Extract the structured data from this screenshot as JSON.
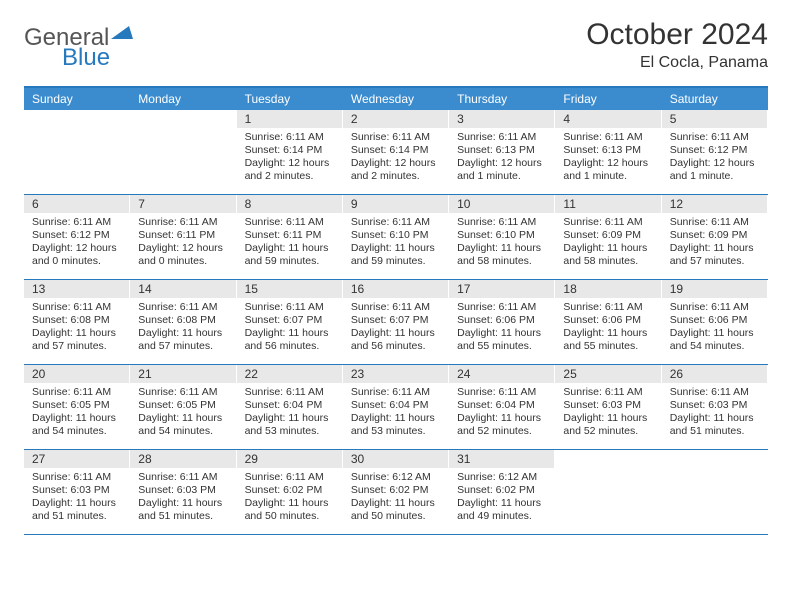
{
  "logo": {
    "general": "General",
    "blue": "Blue"
  },
  "title": "October 2024",
  "subtitle": "El Cocla, Panama",
  "colors": {
    "header_bar": "#3b8bcf",
    "border": "#2779bd",
    "daynum_bg": "#e8e8e8",
    "text": "#333333"
  },
  "dayHeaders": [
    "Sunday",
    "Monday",
    "Tuesday",
    "Wednesday",
    "Thursday",
    "Friday",
    "Saturday"
  ],
  "weeks": [
    [
      {
        "n": "",
        "sr": "",
        "ss": "",
        "dl": "",
        "empty": true
      },
      {
        "n": "",
        "sr": "",
        "ss": "",
        "dl": "",
        "empty": true
      },
      {
        "n": "1",
        "sr": "Sunrise: 6:11 AM",
        "ss": "Sunset: 6:14 PM",
        "dl": "Daylight: 12 hours and 2 minutes."
      },
      {
        "n": "2",
        "sr": "Sunrise: 6:11 AM",
        "ss": "Sunset: 6:14 PM",
        "dl": "Daylight: 12 hours and 2 minutes."
      },
      {
        "n": "3",
        "sr": "Sunrise: 6:11 AM",
        "ss": "Sunset: 6:13 PM",
        "dl": "Daylight: 12 hours and 1 minute."
      },
      {
        "n": "4",
        "sr": "Sunrise: 6:11 AM",
        "ss": "Sunset: 6:13 PM",
        "dl": "Daylight: 12 hours and 1 minute."
      },
      {
        "n": "5",
        "sr": "Sunrise: 6:11 AM",
        "ss": "Sunset: 6:12 PM",
        "dl": "Daylight: 12 hours and 1 minute."
      }
    ],
    [
      {
        "n": "6",
        "sr": "Sunrise: 6:11 AM",
        "ss": "Sunset: 6:12 PM",
        "dl": "Daylight: 12 hours and 0 minutes."
      },
      {
        "n": "7",
        "sr": "Sunrise: 6:11 AM",
        "ss": "Sunset: 6:11 PM",
        "dl": "Daylight: 12 hours and 0 minutes."
      },
      {
        "n": "8",
        "sr": "Sunrise: 6:11 AM",
        "ss": "Sunset: 6:11 PM",
        "dl": "Daylight: 11 hours and 59 minutes."
      },
      {
        "n": "9",
        "sr": "Sunrise: 6:11 AM",
        "ss": "Sunset: 6:10 PM",
        "dl": "Daylight: 11 hours and 59 minutes."
      },
      {
        "n": "10",
        "sr": "Sunrise: 6:11 AM",
        "ss": "Sunset: 6:10 PM",
        "dl": "Daylight: 11 hours and 58 minutes."
      },
      {
        "n": "11",
        "sr": "Sunrise: 6:11 AM",
        "ss": "Sunset: 6:09 PM",
        "dl": "Daylight: 11 hours and 58 minutes."
      },
      {
        "n": "12",
        "sr": "Sunrise: 6:11 AM",
        "ss": "Sunset: 6:09 PM",
        "dl": "Daylight: 11 hours and 57 minutes."
      }
    ],
    [
      {
        "n": "13",
        "sr": "Sunrise: 6:11 AM",
        "ss": "Sunset: 6:08 PM",
        "dl": "Daylight: 11 hours and 57 minutes."
      },
      {
        "n": "14",
        "sr": "Sunrise: 6:11 AM",
        "ss": "Sunset: 6:08 PM",
        "dl": "Daylight: 11 hours and 57 minutes."
      },
      {
        "n": "15",
        "sr": "Sunrise: 6:11 AM",
        "ss": "Sunset: 6:07 PM",
        "dl": "Daylight: 11 hours and 56 minutes."
      },
      {
        "n": "16",
        "sr": "Sunrise: 6:11 AM",
        "ss": "Sunset: 6:07 PM",
        "dl": "Daylight: 11 hours and 56 minutes."
      },
      {
        "n": "17",
        "sr": "Sunrise: 6:11 AM",
        "ss": "Sunset: 6:06 PM",
        "dl": "Daylight: 11 hours and 55 minutes."
      },
      {
        "n": "18",
        "sr": "Sunrise: 6:11 AM",
        "ss": "Sunset: 6:06 PM",
        "dl": "Daylight: 11 hours and 55 minutes."
      },
      {
        "n": "19",
        "sr": "Sunrise: 6:11 AM",
        "ss": "Sunset: 6:06 PM",
        "dl": "Daylight: 11 hours and 54 minutes."
      }
    ],
    [
      {
        "n": "20",
        "sr": "Sunrise: 6:11 AM",
        "ss": "Sunset: 6:05 PM",
        "dl": "Daylight: 11 hours and 54 minutes."
      },
      {
        "n": "21",
        "sr": "Sunrise: 6:11 AM",
        "ss": "Sunset: 6:05 PM",
        "dl": "Daylight: 11 hours and 54 minutes."
      },
      {
        "n": "22",
        "sr": "Sunrise: 6:11 AM",
        "ss": "Sunset: 6:04 PM",
        "dl": "Daylight: 11 hours and 53 minutes."
      },
      {
        "n": "23",
        "sr": "Sunrise: 6:11 AM",
        "ss": "Sunset: 6:04 PM",
        "dl": "Daylight: 11 hours and 53 minutes."
      },
      {
        "n": "24",
        "sr": "Sunrise: 6:11 AM",
        "ss": "Sunset: 6:04 PM",
        "dl": "Daylight: 11 hours and 52 minutes."
      },
      {
        "n": "25",
        "sr": "Sunrise: 6:11 AM",
        "ss": "Sunset: 6:03 PM",
        "dl": "Daylight: 11 hours and 52 minutes."
      },
      {
        "n": "26",
        "sr": "Sunrise: 6:11 AM",
        "ss": "Sunset: 6:03 PM",
        "dl": "Daylight: 11 hours and 51 minutes."
      }
    ],
    [
      {
        "n": "27",
        "sr": "Sunrise: 6:11 AM",
        "ss": "Sunset: 6:03 PM",
        "dl": "Daylight: 11 hours and 51 minutes."
      },
      {
        "n": "28",
        "sr": "Sunrise: 6:11 AM",
        "ss": "Sunset: 6:03 PM",
        "dl": "Daylight: 11 hours and 51 minutes."
      },
      {
        "n": "29",
        "sr": "Sunrise: 6:11 AM",
        "ss": "Sunset: 6:02 PM",
        "dl": "Daylight: 11 hours and 50 minutes."
      },
      {
        "n": "30",
        "sr": "Sunrise: 6:12 AM",
        "ss": "Sunset: 6:02 PM",
        "dl": "Daylight: 11 hours and 50 minutes."
      },
      {
        "n": "31",
        "sr": "Sunrise: 6:12 AM",
        "ss": "Sunset: 6:02 PM",
        "dl": "Daylight: 11 hours and 49 minutes."
      },
      {
        "n": "",
        "sr": "",
        "ss": "",
        "dl": "",
        "empty": true
      },
      {
        "n": "",
        "sr": "",
        "ss": "",
        "dl": "",
        "empty": true
      }
    ]
  ]
}
